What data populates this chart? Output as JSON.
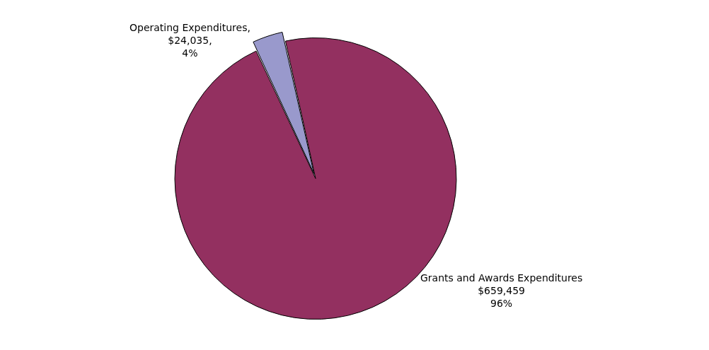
{
  "chart_data": {
    "type": "pie",
    "categories": [
      "Operating Expenditures",
      "Grants and Awards Expenditures"
    ],
    "values": [
      24035,
      659459
    ],
    "value_labels": [
      ",\n$24,035,\n4%",
      "\n$659,459\n96%"
    ],
    "colors": [
      "#9999cc",
      "#933060"
    ]
  }
}
